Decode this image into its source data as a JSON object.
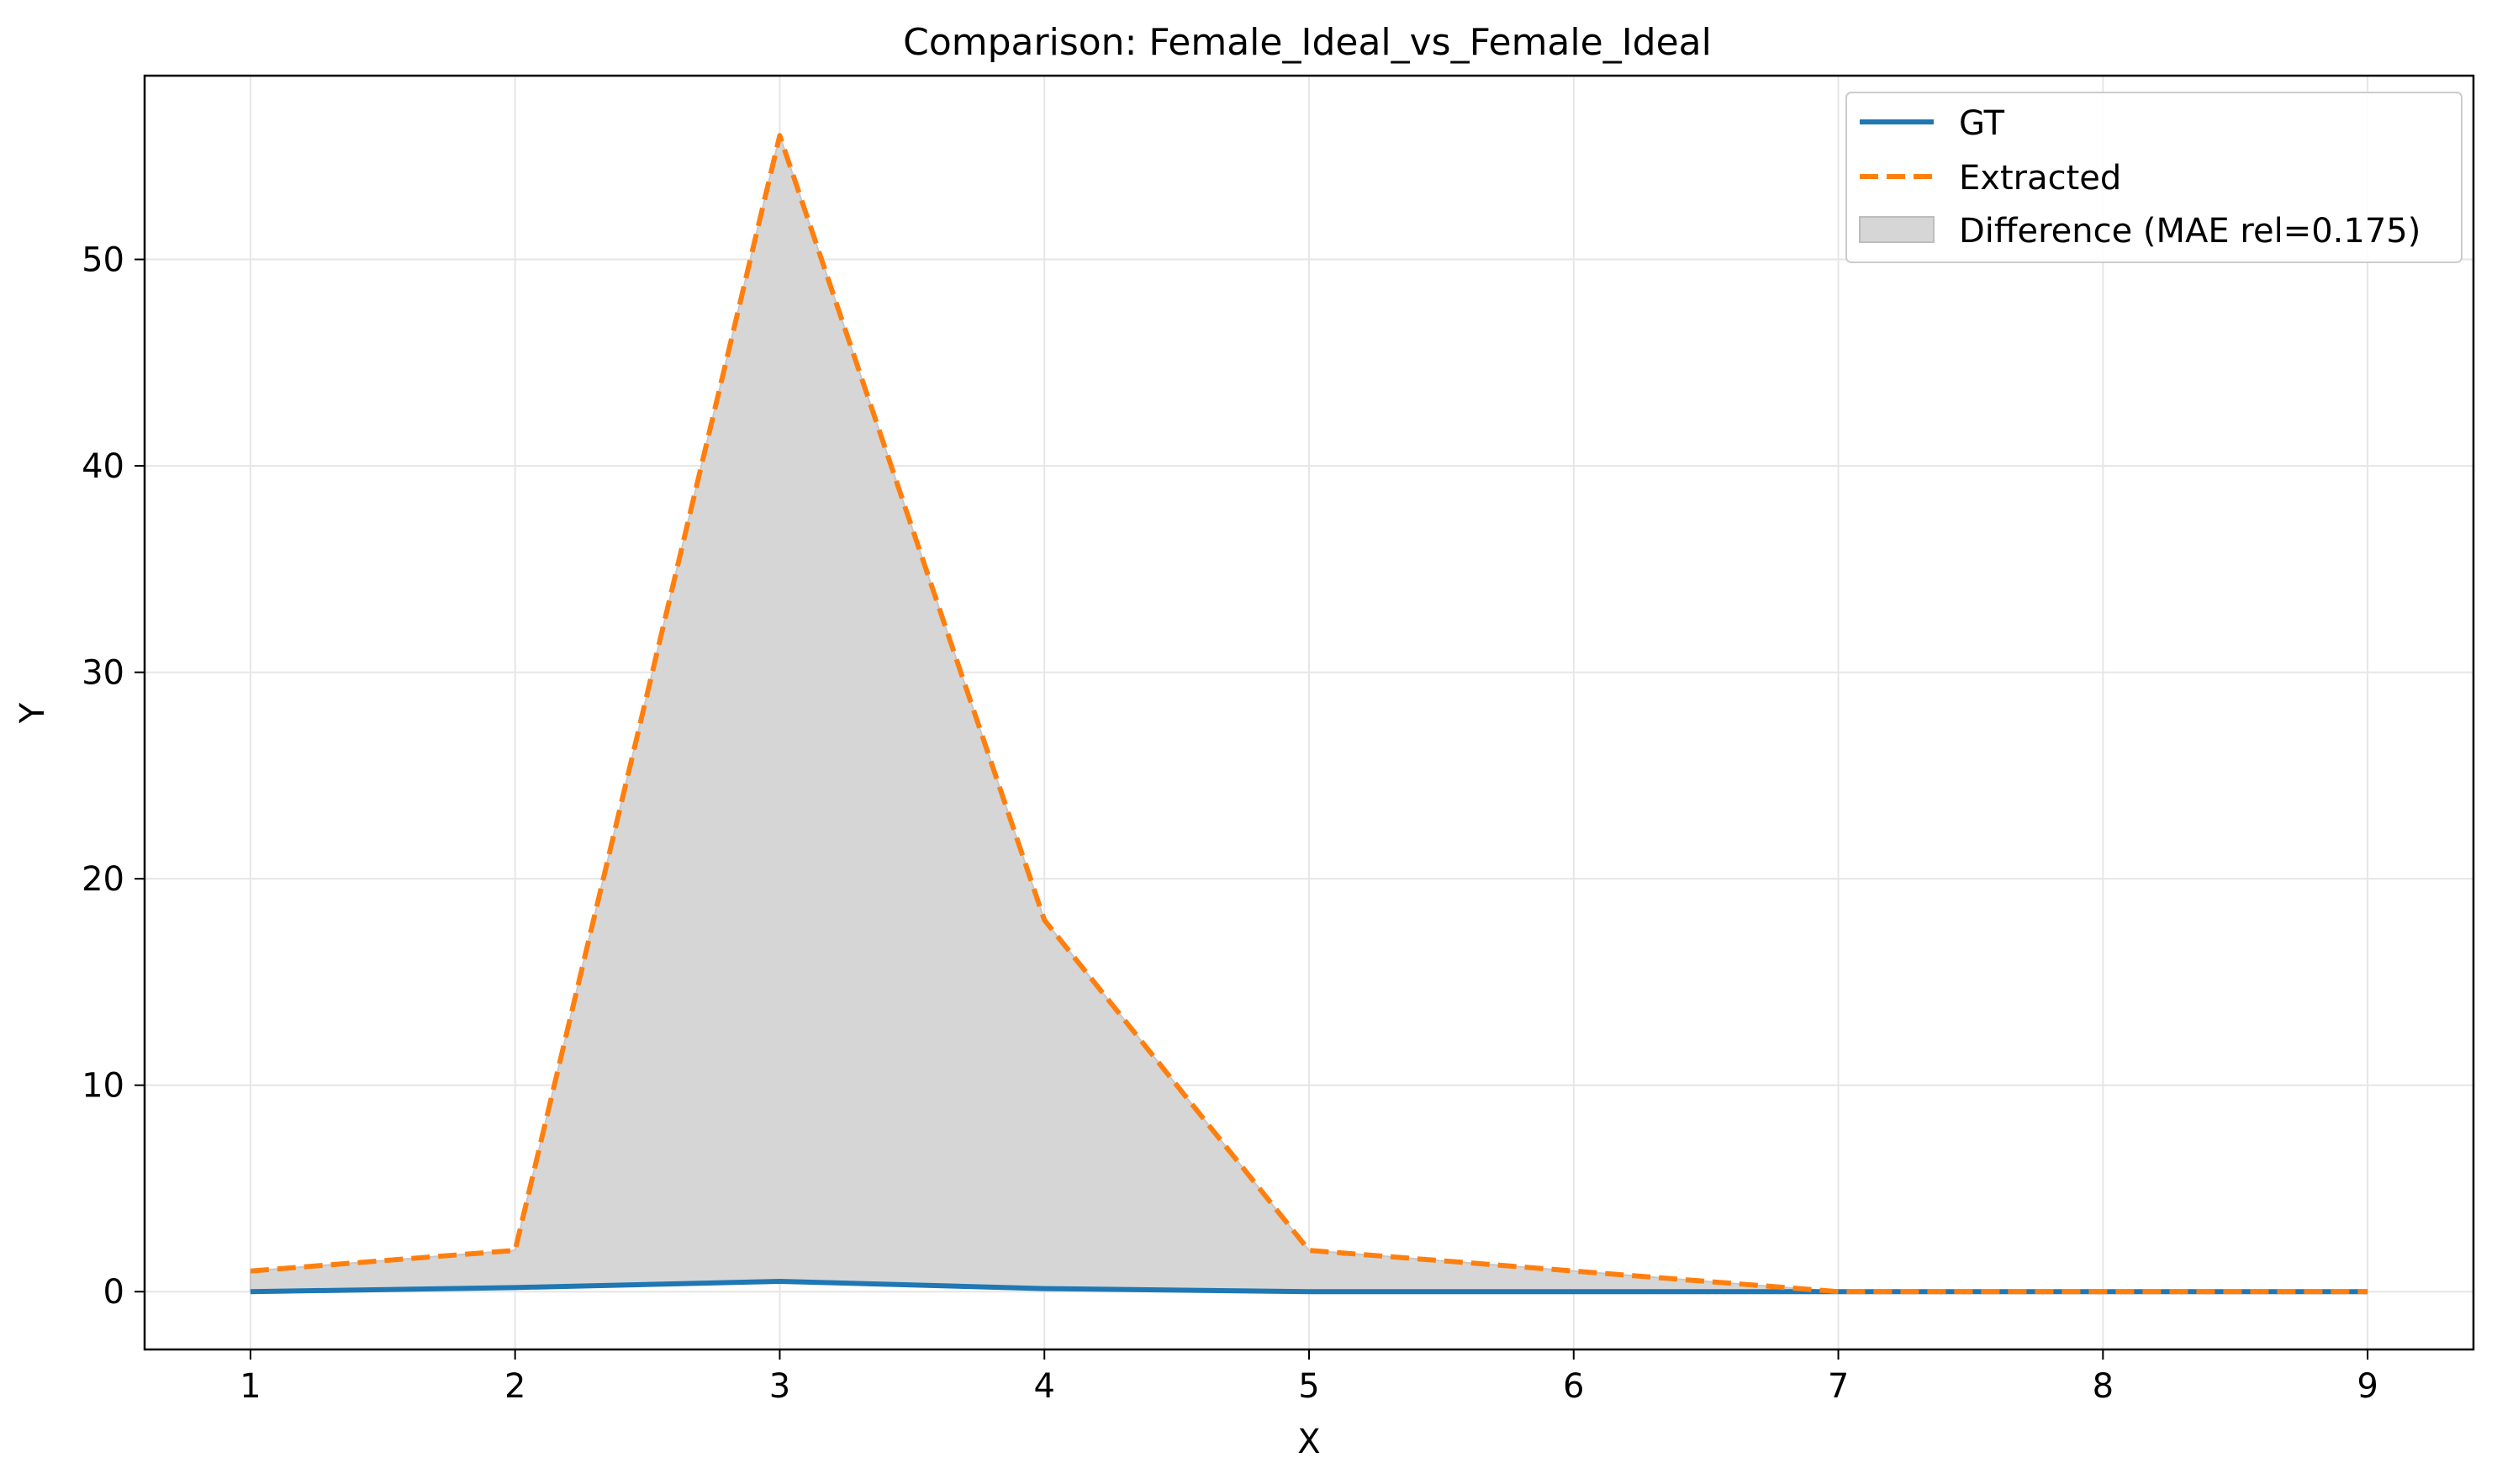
{
  "chart_data": {
    "type": "line",
    "title": "Comparison: Female_Ideal_vs_Female_Ideal",
    "xlabel": "X",
    "ylabel": "Y",
    "x": [
      1,
      2,
      3,
      4,
      5,
      6,
      7,
      8,
      9
    ],
    "xlim": [
      0.6,
      9.4
    ],
    "ylim": [
      -2.8,
      58.9
    ],
    "xticks": [
      1,
      2,
      3,
      4,
      5,
      6,
      7,
      8,
      9
    ],
    "yticks": [
      0,
      10,
      20,
      30,
      40,
      50
    ],
    "grid": true,
    "legend_position": "top-right",
    "series": [
      {
        "name": "GT",
        "style": "solid",
        "color": "#1f77b4",
        "values": [
          0,
          0.2,
          0.5,
          0.15,
          0,
          0,
          0,
          0,
          0
        ]
      },
      {
        "name": "Extracted",
        "style": "dashed",
        "color": "#ff7f0e",
        "values": [
          1,
          2,
          56,
          18,
          2,
          1,
          0,
          0,
          0
        ]
      }
    ],
    "difference_fill": {
      "label": "Difference (MAE rel=0.175)",
      "color": "#d3d3d3"
    }
  }
}
